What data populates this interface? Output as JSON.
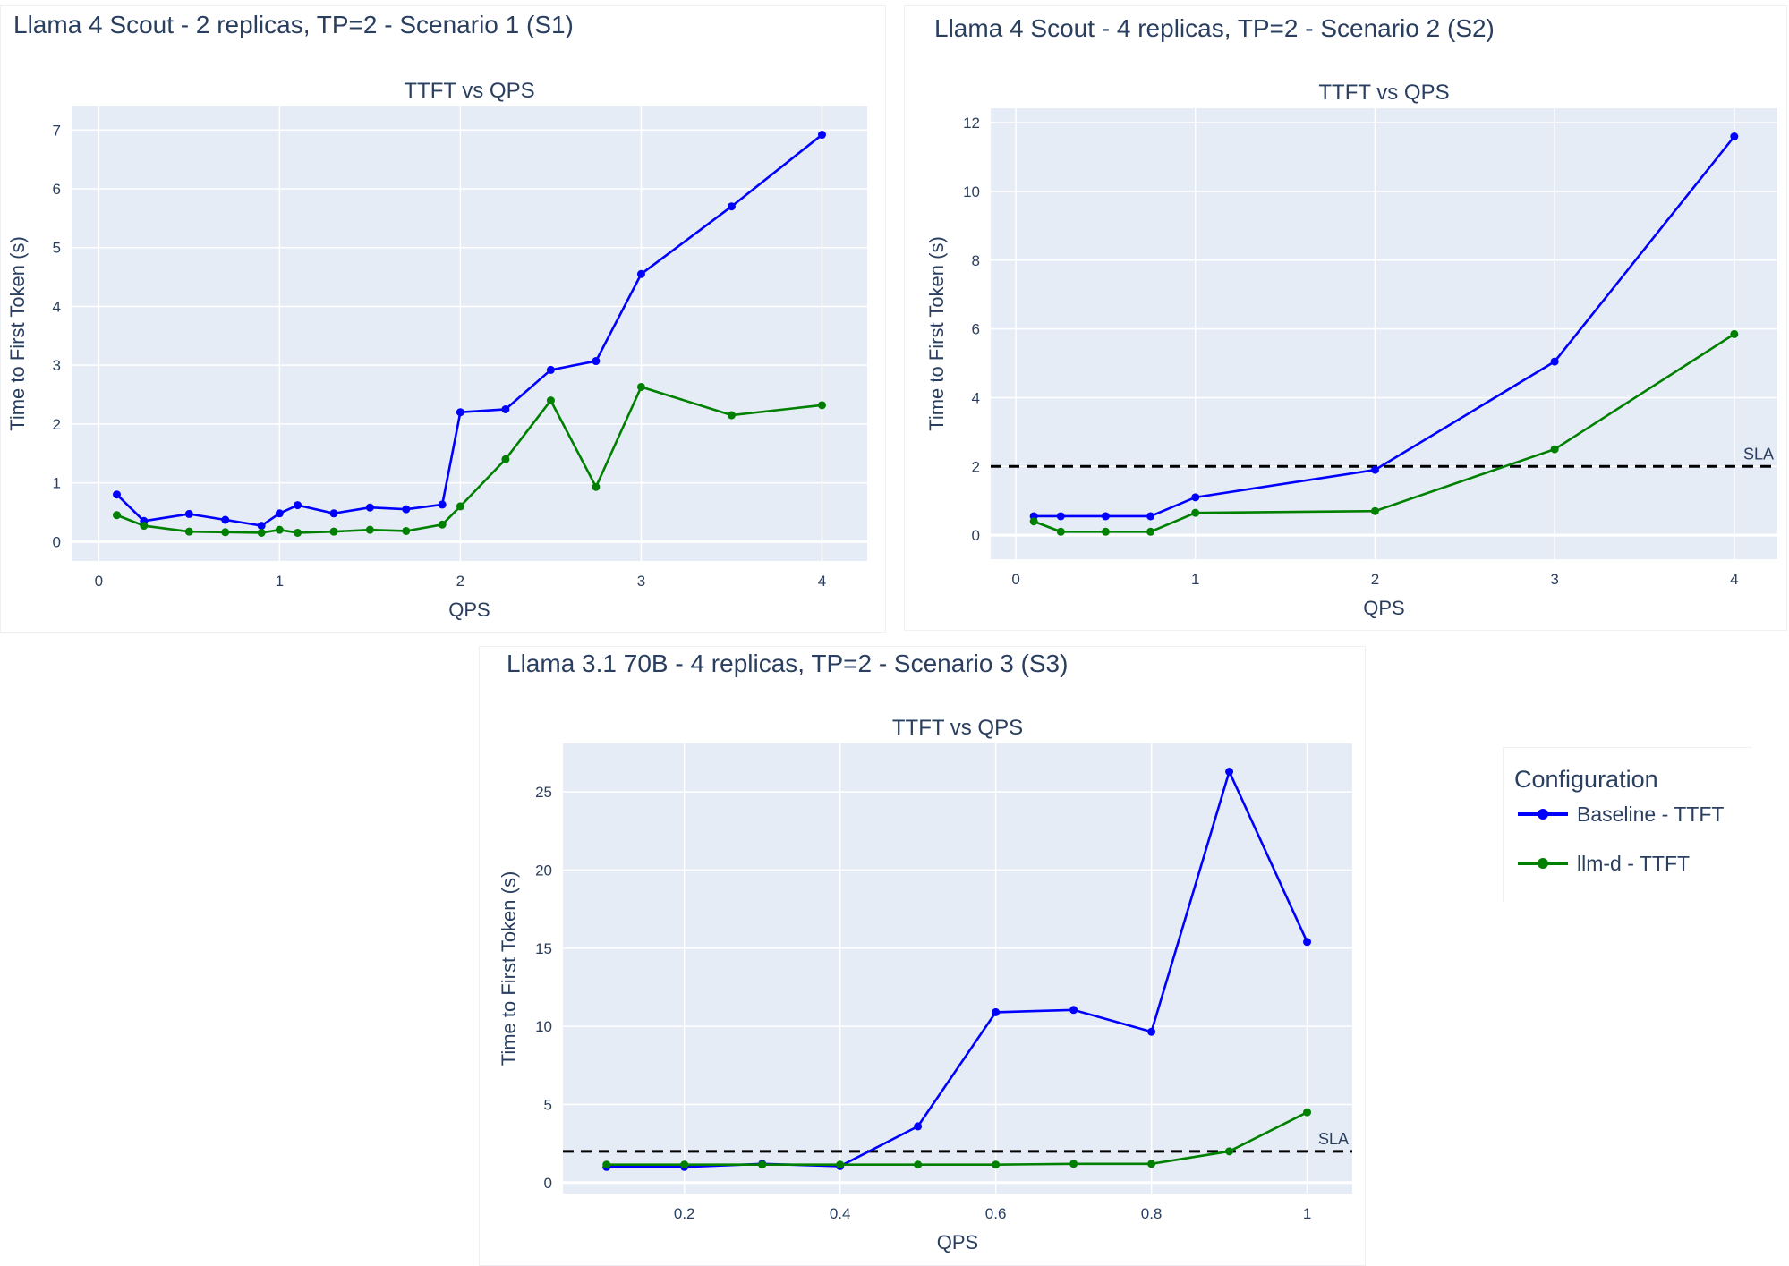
{
  "colors": {
    "baseline": "#0000ff",
    "llmd": "#008000",
    "plot_bg": "#e5ecf6",
    "grid": "#ffffff",
    "sla": "#000000",
    "text": "#2a3f5f"
  },
  "legend": {
    "title": "Configuration",
    "items": [
      {
        "label": "Baseline - TTFT",
        "color": "#0000ff"
      },
      {
        "label": "llm-d - TTFT",
        "color": "#008000"
      }
    ]
  },
  "chart_data": [
    {
      "type": "line",
      "panel_title": "Llama 4 Scout - 2 replicas, TP=2 - Scenario 1 (S1)",
      "title": "TTFT vs QPS",
      "xlabel": "QPS",
      "ylabel": "Time to First Token (s)",
      "xlim": [
        -0.15,
        4.25
      ],
      "ylim": [
        -0.33,
        7.4
      ],
      "xticks": [
        0,
        1,
        2,
        3,
        4
      ],
      "yticks": [
        0,
        1,
        2,
        3,
        4,
        5,
        6,
        7
      ],
      "grid": true,
      "sla": null,
      "x": [
        0.1,
        0.25,
        0.5,
        0.7,
        0.9,
        1.0,
        1.1,
        1.3,
        1.5,
        1.7,
        1.9,
        2.0,
        2.25,
        2.5,
        2.75,
        3.0,
        3.5,
        4.0
      ],
      "series": [
        {
          "name": "Baseline - TTFT",
          "values": [
            0.8,
            0.35,
            0.47,
            0.37,
            0.27,
            0.48,
            0.62,
            0.48,
            0.58,
            0.55,
            0.63,
            2.2,
            2.25,
            2.92,
            3.07,
            4.55,
            5.7,
            6.92
          ]
        },
        {
          "name": "llm-d - TTFT",
          "values": [
            0.45,
            0.27,
            0.17,
            0.16,
            0.15,
            0.2,
            0.15,
            0.17,
            0.2,
            0.18,
            0.29,
            0.6,
            1.4,
            2.4,
            0.93,
            2.63,
            2.15,
            2.32
          ]
        }
      ]
    },
    {
      "type": "line",
      "panel_title": "Llama 4 Scout - 4 replicas, TP=2 - Scenario 2 (S2)",
      "title": "TTFT vs QPS",
      "xlabel": "QPS",
      "ylabel": "Time to First Token (s)",
      "xlim": [
        -0.14,
        4.24
      ],
      "ylim": [
        -0.7,
        12.42
      ],
      "xticks": [
        0,
        1,
        2,
        3,
        4
      ],
      "yticks": [
        0,
        2,
        4,
        6,
        8,
        10,
        12
      ],
      "grid": true,
      "sla": {
        "value": 2,
        "label": "SLA"
      },
      "x": [
        0.1,
        0.25,
        0.5,
        0.75,
        1,
        2,
        3,
        4
      ],
      "series": [
        {
          "name": "Baseline - TTFT",
          "values": [
            0.55,
            0.55,
            0.55,
            0.55,
            1.1,
            1.9,
            5.05,
            11.6
          ]
        },
        {
          "name": "llm-d - TTFT",
          "values": [
            0.4,
            0.1,
            0.1,
            0.1,
            0.65,
            0.7,
            2.5,
            5.85
          ]
        }
      ]
    },
    {
      "type": "line",
      "panel_title": "Llama 3.1 70B - 4 replicas, TP=2 - Scenario 3 (S3)",
      "title": "TTFT vs QPS",
      "xlabel": "QPS",
      "ylabel": "Time to First Token (s)",
      "xlim": [
        0.044,
        1.058
      ],
      "ylim": [
        -0.7,
        28.1
      ],
      "xticks": [
        0.2,
        0.4,
        0.6,
        0.8,
        1
      ],
      "yticks": [
        0,
        5,
        10,
        15,
        20,
        25
      ],
      "grid": true,
      "sla": {
        "value": 2,
        "label": "SLA"
      },
      "x": [
        0.1,
        0.2,
        0.3,
        0.4,
        0.5,
        0.6,
        0.7,
        0.8,
        0.9,
        1.0
      ],
      "series": [
        {
          "name": "Baseline - TTFT",
          "values": [
            1.0,
            1.0,
            1.2,
            1.05,
            3.6,
            10.9,
            11.05,
            9.65,
            26.3,
            15.4
          ]
        },
        {
          "name": "llm-d - TTFT",
          "values": [
            1.15,
            1.15,
            1.15,
            1.15,
            1.15,
            1.15,
            1.2,
            1.2,
            2.0,
            4.5
          ]
        }
      ]
    }
  ]
}
